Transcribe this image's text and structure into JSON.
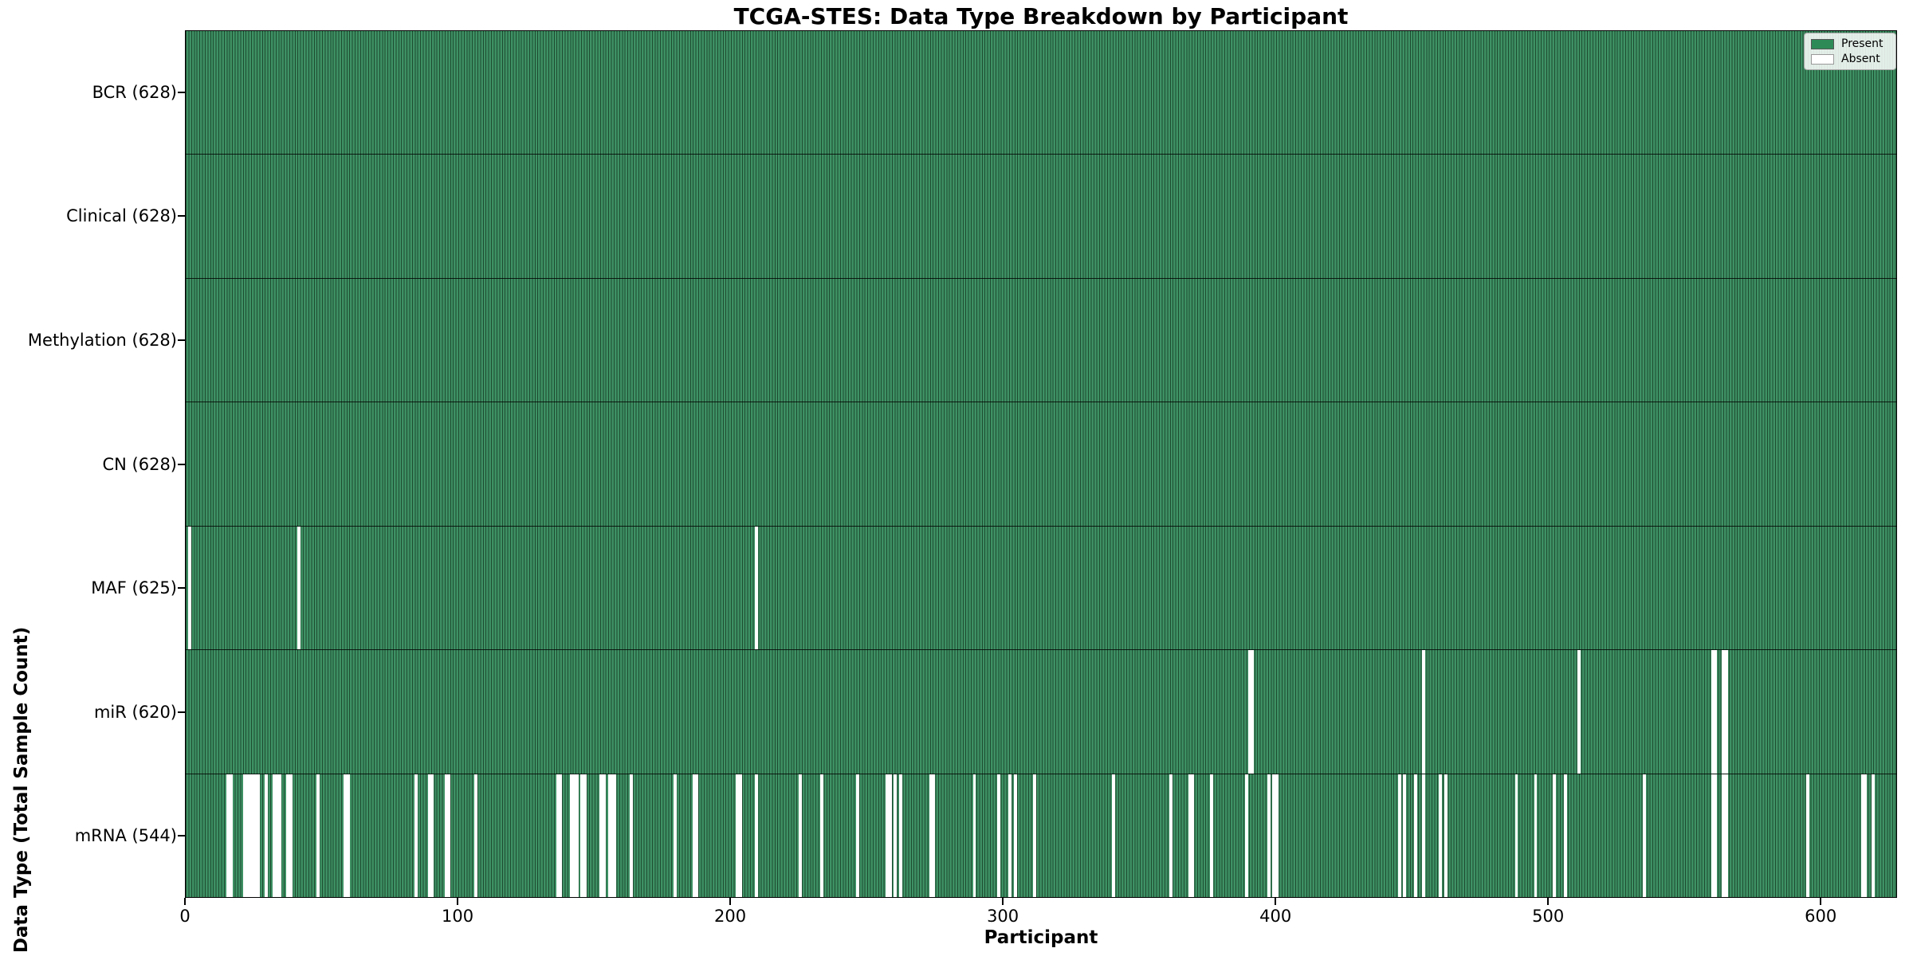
{
  "chart_data": {
    "type": "heatmap",
    "title": "TCGA-STES: Data Type Breakdown by Participant",
    "xlabel": "Participant",
    "ylabel": "Data Type (Total Sample Count)",
    "n_participants": 628,
    "x_range": [
      0,
      628
    ],
    "x_ticks": [
      0,
      100,
      200,
      300,
      400,
      500,
      600
    ],
    "grid": false,
    "legend": {
      "position": "upper-right",
      "entries": [
        {
          "label": "Present",
          "color": "#2e8b57"
        },
        {
          "label": "Absent",
          "color": "#ffffff"
        }
      ]
    },
    "rows": [
      {
        "label": "BCR (628)",
        "data_type": "BCR",
        "present_count": 628,
        "absent_count": 0,
        "absent_participants": []
      },
      {
        "label": "Clinical (628)",
        "data_type": "Clinical",
        "present_count": 628,
        "absent_count": 0,
        "absent_participants": []
      },
      {
        "label": "Methylation (628)",
        "data_type": "Methylation",
        "present_count": 628,
        "absent_count": 0,
        "absent_participants": []
      },
      {
        "label": "CN (628)",
        "data_type": "CN",
        "present_count": 628,
        "absent_count": 0,
        "absent_participants": []
      },
      {
        "label": "MAF (625)",
        "data_type": "MAF",
        "present_count": 625,
        "absent_count": 3,
        "absent_participants": [
          1,
          41,
          209
        ]
      },
      {
        "label": "miR (620)",
        "data_type": "miR",
        "present_count": 620,
        "absent_count": 8,
        "absent_participants": [
          390,
          391,
          454,
          511,
          560,
          561,
          564,
          565
        ]
      },
      {
        "label": "mRNA (544)",
        "data_type": "mRNA",
        "present_count": 544,
        "absent_count": 84,
        "absent_participants": [
          15,
          16,
          21,
          22,
          23,
          24,
          25,
          26,
          29,
          32,
          33,
          34,
          37,
          38,
          48,
          58,
          59,
          84,
          89,
          90,
          95,
          96,
          106,
          136,
          137,
          141,
          142,
          143,
          145,
          146,
          152,
          153,
          155,
          156,
          157,
          163,
          179,
          186,
          187,
          202,
          203,
          209,
          225,
          233,
          246,
          257,
          258,
          260,
          262,
          273,
          274,
          289,
          298,
          302,
          304,
          311,
          340,
          361,
          368,
          369,
          376,
          389,
          397,
          399,
          400,
          445,
          447,
          451,
          454,
          460,
          462,
          488,
          495,
          502,
          506,
          535,
          560,
          561,
          564,
          565,
          595,
          615,
          616,
          619
        ]
      }
    ]
  },
  "colors": {
    "bar_fill": "#3e9164",
    "bar_edge": "#1e4b30",
    "present": "#2e8b57",
    "absent": "#ffffff",
    "axis": "#000000"
  }
}
